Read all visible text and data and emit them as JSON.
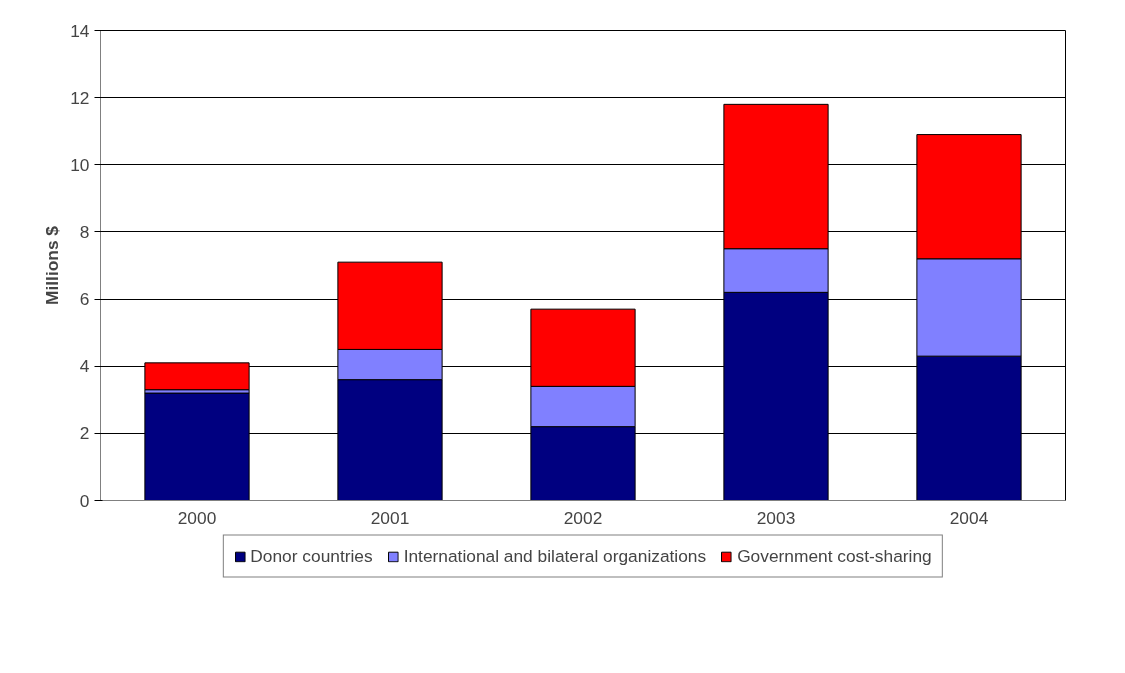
{
  "chart_data": {
    "type": "bar",
    "stacked": true,
    "ylabel": "Millions $",
    "categories": [
      "2000",
      "2001",
      "2002",
      "2003",
      "2004"
    ],
    "series": [
      {
        "name": "Donor countries",
        "color": "#000080",
        "values": [
          3.2,
          3.6,
          2.2,
          6.2,
          4.3
        ]
      },
      {
        "name": "International and bilateral organizations",
        "color": "#8080ff",
        "values": [
          0.1,
          0.9,
          1.2,
          1.3,
          2.9
        ]
      },
      {
        "name": "Government cost-sharing",
        "color": "#ff0000",
        "values": [
          0.8,
          2.6,
          2.3,
          4.3,
          3.7
        ]
      }
    ],
    "ylim": [
      0,
      14
    ],
    "yticks": [
      0,
      2,
      4,
      6,
      8,
      10,
      12,
      14
    ],
    "grid": "y",
    "legend": "bottom"
  }
}
